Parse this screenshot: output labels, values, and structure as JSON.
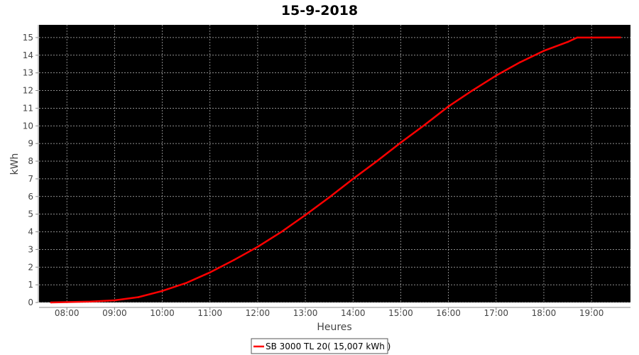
{
  "chart_data": {
    "type": "line",
    "title": "15-9-2018",
    "xlabel": "Heures",
    "ylabel": "kWh",
    "xlim": [
      "07:25",
      "19:49"
    ],
    "ylim": [
      0,
      15.72
    ],
    "x_ticks": [
      "08:00",
      "09:00",
      "10:00",
      "11:00",
      "12:00",
      "13:00",
      "14:00",
      "15:00",
      "16:00",
      "17:00",
      "18:00",
      "19:00"
    ],
    "y_ticks": [
      0,
      1,
      2,
      3,
      4,
      5,
      6,
      7,
      8,
      9,
      10,
      11,
      12,
      13,
      14,
      15
    ],
    "grid": true,
    "background": "#000000",
    "legend_position": "bottom",
    "series": [
      {
        "name": "SB 3000 TL 20( 15,007 kWh )",
        "color": "#ff0000",
        "x": [
          "07:40",
          "08:00",
          "08:30",
          "09:00",
          "09:30",
          "10:00",
          "10:30",
          "11:00",
          "11:30",
          "12:00",
          "12:30",
          "13:00",
          "13:30",
          "14:00",
          "14:30",
          "15:00",
          "15:30",
          "16:00",
          "16:30",
          "17:00",
          "17:30",
          "18:00",
          "18:30",
          "18:42",
          "19:00",
          "19:36"
        ],
        "y": [
          0,
          0.02,
          0.05,
          0.12,
          0.3,
          0.65,
          1.1,
          1.7,
          2.4,
          3.15,
          4.0,
          4.95,
          5.95,
          7.0,
          8.0,
          9.05,
          10.05,
          11.1,
          12.0,
          12.85,
          13.6,
          14.25,
          14.75,
          15.0,
          15.0,
          15.007
        ]
      }
    ]
  }
}
